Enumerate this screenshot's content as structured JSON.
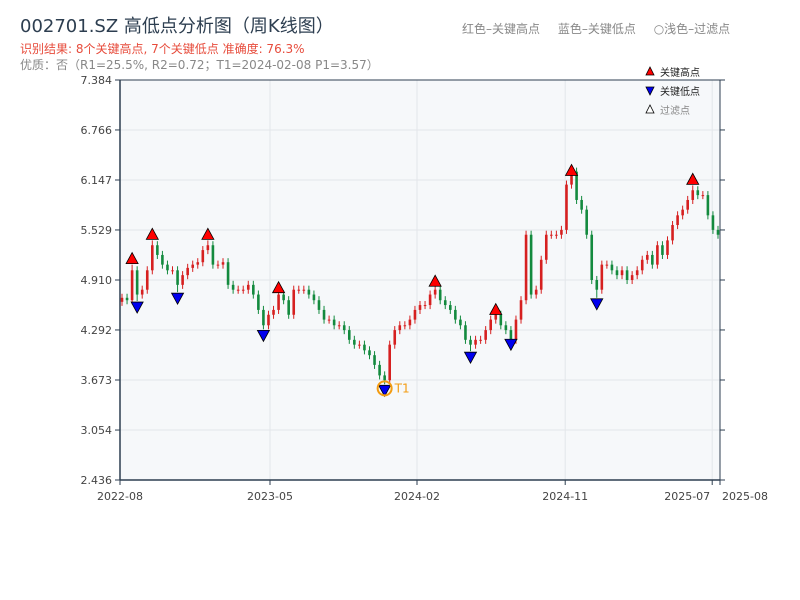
{
  "title": "002701.SZ 高低点分析图（周K线图）",
  "subtitle": "识别结果: 8个关键高点, 7个关键低点   准确度: 76.3%",
  "quality": "优质：否（R1=25.5%, R2=0.72；T1=2024-02-08 P1=3.57）",
  "top_legend": [
    "红色–关键高点",
    "蓝色–关键低点",
    "○浅色–过滤点"
  ],
  "colors": {
    "up": "#d62020",
    "down": "#138a3e",
    "high": "#ff0000",
    "low": "#0000ee",
    "t1": "#f39c12",
    "axis": "#2d3e50",
    "bg": "#f6f8fa"
  },
  "chart_data": {
    "type": "candlestick",
    "title": "002701.SZ 高低点分析图（周K线图）",
    "ylim": [
      2.436,
      7.384
    ],
    "yticks": [
      "2.436",
      "3.054",
      "3.673",
      "4.292",
      "4.910",
      "5.529",
      "6.147",
      "6.766",
      "7.384"
    ],
    "xticks": [
      {
        "label": "2022-08",
        "pos": 0
      },
      {
        "label": "2023-05",
        "pos": 0.25
      },
      {
        "label": "2024-02",
        "pos": 0.495
      },
      {
        "label": "2024-11",
        "pos": 0.742
      },
      {
        "label": "2025-07",
        "pos": 0.987
      },
      {
        "label": "2025-08",
        "pos": 1.0
      }
    ],
    "closes": [
      4.69,
      4.66,
      5.03,
      4.73,
      4.79,
      5.03,
      5.34,
      5.22,
      5.1,
      5.03,
      5.03,
      4.85,
      4.97,
      5.06,
      5.1,
      5.13,
      5.28,
      5.34,
      5.1,
      5.1,
      5.13,
      4.85,
      4.79,
      4.79,
      4.79,
      4.85,
      4.73,
      4.54,
      4.35,
      4.48,
      4.54,
      4.73,
      4.66,
      4.48,
      4.79,
      4.79,
      4.79,
      4.73,
      4.66,
      4.54,
      4.42,
      4.42,
      4.35,
      4.35,
      4.29,
      4.17,
      4.11,
      4.11,
      4.04,
      3.98,
      3.86,
      3.73,
      3.67,
      4.11,
      4.29,
      4.35,
      4.35,
      4.42,
      4.54,
      4.6,
      4.6,
      4.73,
      4.79,
      4.66,
      4.6,
      4.54,
      4.42,
      4.35,
      4.17,
      4.11,
      4.17,
      4.17,
      4.29,
      4.42,
      4.48,
      4.35,
      4.29,
      4.17,
      4.42,
      4.66,
      5.47,
      4.73,
      4.79,
      5.16,
      5.47,
      5.47,
      5.47,
      5.53,
      6.09,
      6.25,
      5.9,
      5.78,
      5.47,
      4.91,
      4.79,
      5.1,
      5.1,
      5.03,
      4.97,
      5.03,
      4.91,
      4.97,
      5.03,
      5.16,
      5.22,
      5.1,
      5.34,
      5.22,
      5.4,
      5.59,
      5.71,
      5.78,
      5.9,
      6.02,
      5.96,
      5.96,
      5.71,
      5.53,
      5.47
    ],
    "key_highs": [
      {
        "i": 2,
        "price": 5.15
      },
      {
        "i": 6,
        "price": 5.45
      },
      {
        "i": 17,
        "price": 5.45
      },
      {
        "i": 31,
        "price": 4.79
      },
      {
        "i": 62,
        "price": 4.87
      },
      {
        "i": 74,
        "price": 4.52
      },
      {
        "i": 89,
        "price": 6.24
      },
      {
        "i": 113,
        "price": 6.13
      }
    ],
    "key_lows": [
      {
        "i": 3,
        "price": 4.6
      },
      {
        "i": 11,
        "price": 4.71
      },
      {
        "i": 28,
        "price": 4.25
      },
      {
        "i": 52,
        "price": 3.57
      },
      {
        "i": 69,
        "price": 3.98
      },
      {
        "i": 77,
        "price": 4.14
      },
      {
        "i": 94,
        "price": 4.64
      }
    ],
    "t1": {
      "i": 52,
      "price": 3.57,
      "label": "T1"
    },
    "legend": [
      "关键高点",
      "关键低点",
      "过滤点"
    ]
  }
}
